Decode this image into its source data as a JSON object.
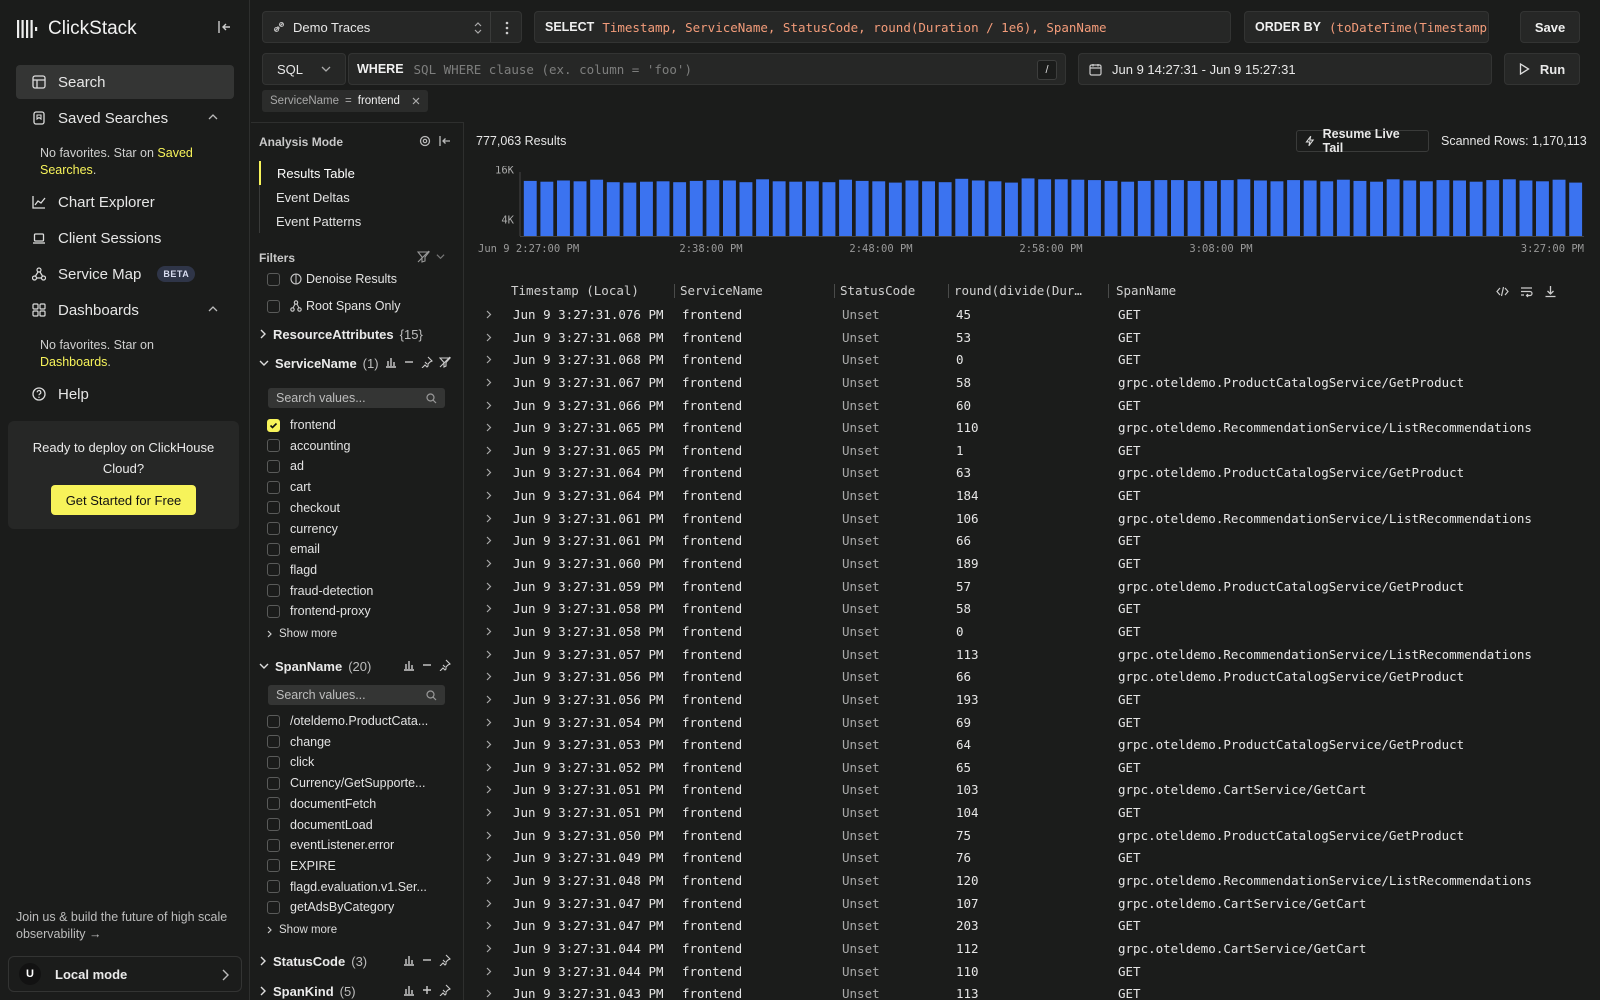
{
  "app": {
    "name": "ClickStack"
  },
  "nav": {
    "items": [
      {
        "label": "Search"
      },
      {
        "label": "Saved Searches"
      },
      {
        "label": "Chart Explorer"
      },
      {
        "label": "Client Sessions"
      },
      {
        "label": "Service Map",
        "badge": "BETA"
      },
      {
        "label": "Dashboards"
      },
      {
        "label": "Help"
      }
    ],
    "saved_note_prefix": "No favorites. Star on ",
    "saved_note_link": "Saved Searches",
    "dash_note_prefix": "No favorites. Star on ",
    "dash_note_link": "Dashboards",
    "note_suffix": "."
  },
  "deploy": {
    "title": "Ready to deploy on ClickHouse Cloud?",
    "button": "Get Started for Free"
  },
  "footer": {
    "join": "Join us & build the future of high scale observability →",
    "avatar": "U",
    "mode": "Local mode"
  },
  "query": {
    "source": "Demo Traces",
    "select_kw": "SELECT",
    "select_value": "Timestamp, ServiceName, StatusCode, round(Duration / 1e6), SpanName",
    "order_kw": "ORDER BY",
    "order_value": "(toDateTime(Timestamp),",
    "save": "Save",
    "language": "SQL",
    "where_kw": "WHERE",
    "where_placeholder": "SQL WHERE clause (ex. column = 'foo')",
    "slash": "/",
    "time_range": "Jun 9 14:27:31 - Jun 9 15:27:31",
    "run": "Run",
    "chip_key": "ServiceName",
    "chip_op": "=",
    "chip_value": "frontend"
  },
  "analysis": {
    "title": "Analysis Mode",
    "modes": [
      "Results Table",
      "Event Deltas",
      "Event Patterns"
    ],
    "filters_title": "Filters",
    "toggles": [
      "Denoise Results",
      "Root Spans Only"
    ],
    "groups": {
      "resource": {
        "name": "ResourceAttributes",
        "count": "{15}"
      },
      "service": {
        "name": "ServiceName",
        "count": "(1)",
        "search_placeholder": "Search values...",
        "values": [
          "frontend",
          "accounting",
          "ad",
          "cart",
          "checkout",
          "currency",
          "email",
          "flagd",
          "fraud-detection",
          "frontend-proxy"
        ]
      },
      "span": {
        "name": "SpanName",
        "count": "(20)",
        "search_placeholder": "Search values...",
        "values": [
          "/oteldemo.ProductCata...",
          "change",
          "click",
          "Currency/GetSupporte...",
          "documentFetch",
          "documentLoad",
          "eventListener.error",
          "EXPIRE",
          "flagd.evaluation.v1.Ser...",
          "getAdsByCategory"
        ]
      },
      "status": {
        "name": "StatusCode",
        "count": "(3)"
      },
      "kind": {
        "name": "SpanKind",
        "count": "(5)"
      }
    },
    "show_more": "Show more"
  },
  "results": {
    "count": "777,063 Results",
    "live_tail": "Resume Live Tail",
    "scanned": "Scanned Rows: 1,170,113"
  },
  "chart_data": {
    "type": "bar",
    "y_ticks": [
      "16K",
      "4K"
    ],
    "x_ticks": [
      "Jun 9 2:27:00 PM",
      "2:38:00 PM",
      "2:48:00 PM",
      "2:58:00 PM",
      "3:08:00 PM",
      "3:27:00 PM"
    ],
    "values": [
      13.3,
      13.1,
      13.4,
      13.2,
      13.6,
      13.0,
      12.9,
      13.1,
      13.2,
      13.0,
      13.3,
      13.5,
      13.4,
      13.0,
      13.7,
      13.2,
      13.1,
      13.2,
      13.0,
      13.6,
      13.3,
      13.2,
      12.9,
      13.4,
      13.2,
      13.0,
      13.8,
      13.4,
      13.2,
      12.9,
      13.9,
      13.7,
      13.7,
      13.6,
      13.5,
      13.3,
      13.1,
      13.3,
      13.5,
      13.5,
      13.3,
      13.3,
      13.5,
      13.7,
      13.4,
      13.2,
      13.5,
      13.4,
      13.2,
      13.6,
      13.3,
      13.1,
      13.7,
      13.4,
      13.2,
      13.5,
      13.4,
      13.1,
      13.5,
      13.7,
      13.4,
      13.2,
      13.6,
      12.9
    ],
    "ylim": [
      0,
      16.9
    ]
  },
  "table": {
    "headers": [
      "Timestamp (Local)",
      "ServiceName",
      "StatusCode",
      "round(divide(Dur…",
      "SpanName"
    ],
    "rows": [
      [
        "Jun 9 3:27:31.076 PM",
        "frontend",
        "Unset",
        "45",
        "GET"
      ],
      [
        "Jun 9 3:27:31.068 PM",
        "frontend",
        "Unset",
        "53",
        "GET"
      ],
      [
        "Jun 9 3:27:31.068 PM",
        "frontend",
        "Unset",
        "0",
        "GET"
      ],
      [
        "Jun 9 3:27:31.067 PM",
        "frontend",
        "Unset",
        "58",
        "grpc.oteldemo.ProductCatalogService/GetProduct"
      ],
      [
        "Jun 9 3:27:31.066 PM",
        "frontend",
        "Unset",
        "60",
        "GET"
      ],
      [
        "Jun 9 3:27:31.065 PM",
        "frontend",
        "Unset",
        "110",
        "grpc.oteldemo.RecommendationService/ListRecommendations"
      ],
      [
        "Jun 9 3:27:31.065 PM",
        "frontend",
        "Unset",
        "1",
        "GET"
      ],
      [
        "Jun 9 3:27:31.064 PM",
        "frontend",
        "Unset",
        "63",
        "grpc.oteldemo.ProductCatalogService/GetProduct"
      ],
      [
        "Jun 9 3:27:31.064 PM",
        "frontend",
        "Unset",
        "184",
        "GET"
      ],
      [
        "Jun 9 3:27:31.061 PM",
        "frontend",
        "Unset",
        "106",
        "grpc.oteldemo.RecommendationService/ListRecommendations"
      ],
      [
        "Jun 9 3:27:31.061 PM",
        "frontend",
        "Unset",
        "66",
        "GET"
      ],
      [
        "Jun 9 3:27:31.060 PM",
        "frontend",
        "Unset",
        "189",
        "GET"
      ],
      [
        "Jun 9 3:27:31.059 PM",
        "frontend",
        "Unset",
        "57",
        "grpc.oteldemo.ProductCatalogService/GetProduct"
      ],
      [
        "Jun 9 3:27:31.058 PM",
        "frontend",
        "Unset",
        "58",
        "GET"
      ],
      [
        "Jun 9 3:27:31.058 PM",
        "frontend",
        "Unset",
        "0",
        "GET"
      ],
      [
        "Jun 9 3:27:31.057 PM",
        "frontend",
        "Unset",
        "113",
        "grpc.oteldemo.RecommendationService/ListRecommendations"
      ],
      [
        "Jun 9 3:27:31.056 PM",
        "frontend",
        "Unset",
        "66",
        "grpc.oteldemo.ProductCatalogService/GetProduct"
      ],
      [
        "Jun 9 3:27:31.056 PM",
        "frontend",
        "Unset",
        "193",
        "GET"
      ],
      [
        "Jun 9 3:27:31.054 PM",
        "frontend",
        "Unset",
        "69",
        "GET"
      ],
      [
        "Jun 9 3:27:31.053 PM",
        "frontend",
        "Unset",
        "64",
        "grpc.oteldemo.ProductCatalogService/GetProduct"
      ],
      [
        "Jun 9 3:27:31.052 PM",
        "frontend",
        "Unset",
        "65",
        "GET"
      ],
      [
        "Jun 9 3:27:31.051 PM",
        "frontend",
        "Unset",
        "103",
        "grpc.oteldemo.CartService/GetCart"
      ],
      [
        "Jun 9 3:27:31.051 PM",
        "frontend",
        "Unset",
        "104",
        "GET"
      ],
      [
        "Jun 9 3:27:31.050 PM",
        "frontend",
        "Unset",
        "75",
        "grpc.oteldemo.ProductCatalogService/GetProduct"
      ],
      [
        "Jun 9 3:27:31.049 PM",
        "frontend",
        "Unset",
        "76",
        "GET"
      ],
      [
        "Jun 9 3:27:31.048 PM",
        "frontend",
        "Unset",
        "120",
        "grpc.oteldemo.RecommendationService/ListRecommendations"
      ],
      [
        "Jun 9 3:27:31.047 PM",
        "frontend",
        "Unset",
        "107",
        "grpc.oteldemo.CartService/GetCart"
      ],
      [
        "Jun 9 3:27:31.047 PM",
        "frontend",
        "Unset",
        "203",
        "GET"
      ],
      [
        "Jun 9 3:27:31.044 PM",
        "frontend",
        "Unset",
        "112",
        "grpc.oteldemo.CartService/GetCart"
      ],
      [
        "Jun 9 3:27:31.044 PM",
        "frontend",
        "Unset",
        "110",
        "GET"
      ],
      [
        "Jun 9 3:27:31.043 PM",
        "frontend",
        "Unset",
        "113",
        "GET"
      ]
    ]
  },
  "colors": {
    "accent": "#f7f35a",
    "bar": "#3b73f0",
    "code": "#f39c7a"
  }
}
